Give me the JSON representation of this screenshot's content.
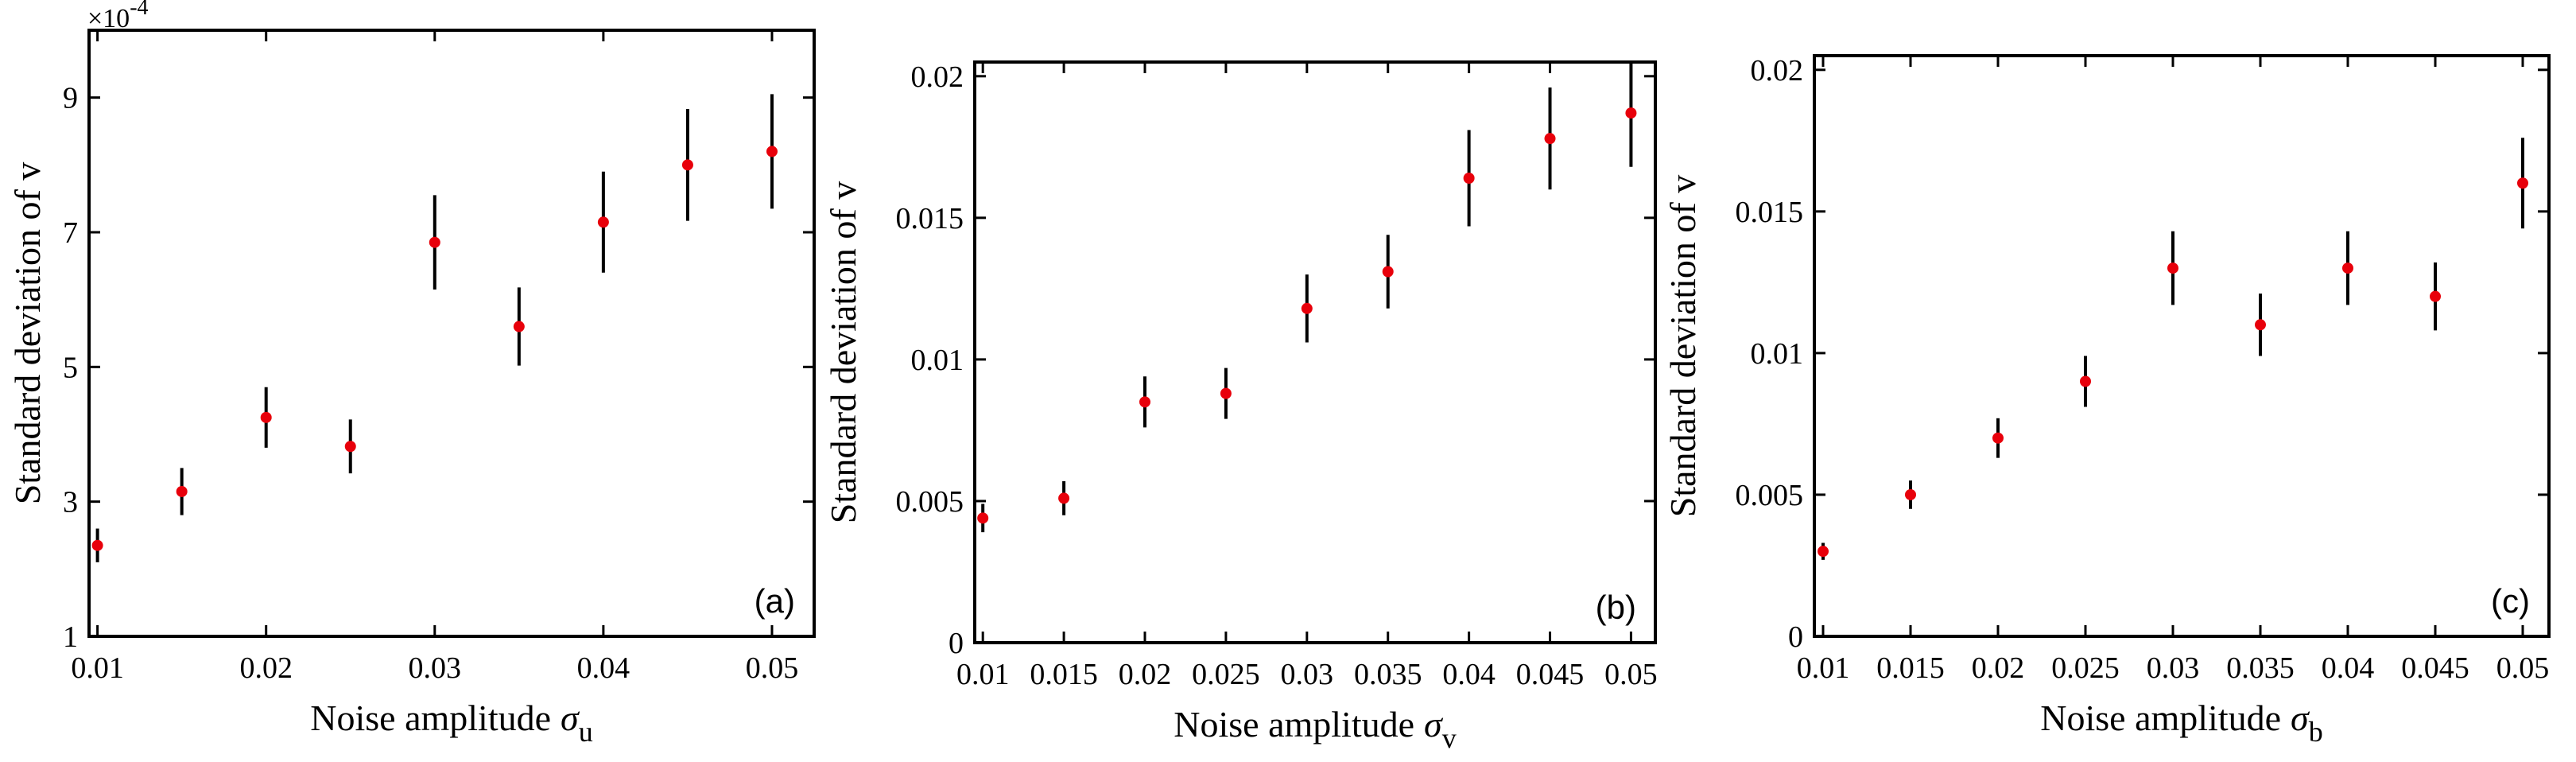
{
  "chart_data": [
    {
      "type": "scatter",
      "panel_label": "(a)",
      "xlabel": "Noise amplitude",
      "xlabel_symbol": "σ",
      "xlabel_subscript": "u",
      "ylabel": "Standard deviation of v",
      "y_multiplier": {
        "base": "×10",
        "exponent": "-4"
      },
      "xlim": [
        0.0095,
        0.0525
      ],
      "ylim": [
        1,
        10
      ],
      "xticks": [
        0.01,
        0.02,
        0.03,
        0.04,
        0.05
      ],
      "xtick_labels": [
        "0.01",
        "0.02",
        "0.03",
        "0.04",
        "0.05"
      ],
      "yticks": [
        1,
        3,
        5,
        7,
        9
      ],
      "ytick_labels": [
        "1",
        "3",
        "5",
        "7",
        "9"
      ],
      "grid": false,
      "marker_color": "#e8000b",
      "errorbar_color": "#000000",
      "points": [
        {
          "x": 0.01,
          "y": 2.35,
          "err": 0.25
        },
        {
          "x": 0.015,
          "y": 3.15,
          "err": 0.35
        },
        {
          "x": 0.02,
          "y": 4.25,
          "err": 0.45
        },
        {
          "x": 0.025,
          "y": 3.82,
          "err": 0.4
        },
        {
          "x": 0.03,
          "y": 6.85,
          "err": 0.7
        },
        {
          "x": 0.035,
          "y": 5.6,
          "err": 0.58
        },
        {
          "x": 0.04,
          "y": 7.15,
          "err": 0.75
        },
        {
          "x": 0.045,
          "y": 8.0,
          "err": 0.83
        },
        {
          "x": 0.05,
          "y": 8.2,
          "err": 0.85
        }
      ]
    },
    {
      "type": "scatter",
      "panel_label": "(b)",
      "xlabel": "Noise amplitude",
      "xlabel_symbol": "σ",
      "xlabel_subscript": "v",
      "ylabel": "Standard deviation of v",
      "xlim": [
        0.0095,
        0.0515
      ],
      "ylim": [
        0,
        0.0205
      ],
      "xticks": [
        0.01,
        0.015,
        0.02,
        0.025,
        0.03,
        0.035,
        0.04,
        0.045,
        0.05
      ],
      "xtick_labels": [
        "0.01",
        "0.015",
        "0.02",
        "0.025",
        "0.03",
        "0.035",
        "0.04",
        "0.045",
        "0.05"
      ],
      "yticks": [
        0,
        0.005,
        0.01,
        0.015,
        0.02
      ],
      "ytick_labels": [
        "0",
        "0.005",
        "0.01",
        "0.015",
        "0.02"
      ],
      "grid": false,
      "marker_color": "#e8000b",
      "errorbar_color": "#000000",
      "points": [
        {
          "x": 0.01,
          "y": 0.0044,
          "err": 0.0005
        },
        {
          "x": 0.015,
          "y": 0.0051,
          "err": 0.0006
        },
        {
          "x": 0.02,
          "y": 0.0085,
          "err": 0.0009
        },
        {
          "x": 0.025,
          "y": 0.0088,
          "err": 0.0009
        },
        {
          "x": 0.03,
          "y": 0.0118,
          "err": 0.0012
        },
        {
          "x": 0.035,
          "y": 0.0131,
          "err": 0.0013
        },
        {
          "x": 0.04,
          "y": 0.0164,
          "err": 0.0017
        },
        {
          "x": 0.045,
          "y": 0.0178,
          "err": 0.0018
        },
        {
          "x": 0.05,
          "y": 0.0187,
          "err": 0.0019
        }
      ]
    },
    {
      "type": "scatter",
      "panel_label": "(c)",
      "xlabel": "Noise amplitude",
      "xlabel_symbol": "σ",
      "xlabel_subscript": "b",
      "ylabel": "Standard deviation of v",
      "xlim": [
        0.0095,
        0.0515
      ],
      "ylim": [
        0,
        0.0205
      ],
      "xticks": [
        0.01,
        0.015,
        0.02,
        0.025,
        0.03,
        0.035,
        0.04,
        0.045,
        0.05
      ],
      "xtick_labels": [
        "0.01",
        "0.015",
        "0.02",
        "0.025",
        "0.03",
        "0.035",
        "0.04",
        "0.045",
        "0.05"
      ],
      "yticks": [
        0,
        0.005,
        0.01,
        0.015,
        0.02
      ],
      "ytick_labels": [
        "0",
        "0.005",
        "0.01",
        "0.015",
        "0.02"
      ],
      "grid": false,
      "marker_color": "#e8000b",
      "errorbar_color": "#000000",
      "points": [
        {
          "x": 0.01,
          "y": 0.003,
          "err": 0.0003
        },
        {
          "x": 0.015,
          "y": 0.005,
          "err": 0.0005
        },
        {
          "x": 0.02,
          "y": 0.007,
          "err": 0.0007
        },
        {
          "x": 0.025,
          "y": 0.009,
          "err": 0.0009
        },
        {
          "x": 0.03,
          "y": 0.013,
          "err": 0.0013
        },
        {
          "x": 0.035,
          "y": 0.011,
          "err": 0.0011
        },
        {
          "x": 0.04,
          "y": 0.013,
          "err": 0.0013
        },
        {
          "x": 0.045,
          "y": 0.012,
          "err": 0.0012
        },
        {
          "x": 0.05,
          "y": 0.016,
          "err": 0.0016
        }
      ]
    }
  ]
}
